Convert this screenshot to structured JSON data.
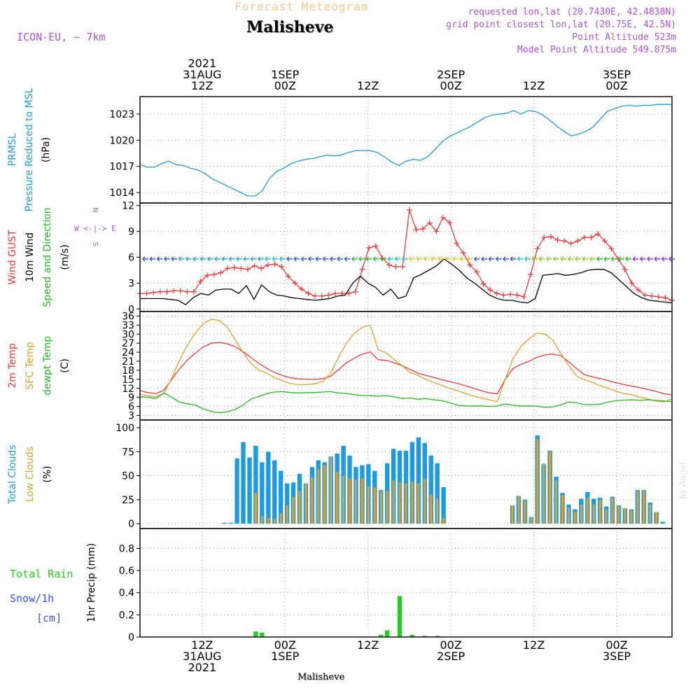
{
  "header": {
    "title": "Forecast Meteogram",
    "location": "Malisheve",
    "model": "ICON-EU, ~ 7km",
    "requested": "requested lon,lat (20.7430E, 42.4838N)",
    "grid": "grid point closest lon,lat (20.75E, 42.5N)",
    "altitude": "Point Altitude 523m",
    "model_altitude": "Model Point Altitude 549.875m"
  },
  "credit": "by Angel",
  "bottom_label": "Malisheve",
  "colors": {
    "pressure": "#1e9be0",
    "gust": "#ee3b3b",
    "wind": "#000000",
    "temp2m": "#ee3b3b",
    "sfctemp": "#e0a030",
    "dewpoint": "#22bb22",
    "total_clouds": "#1e9be0",
    "low_clouds": "#e0a030",
    "rain": "#22cc22",
    "snow": "#3355ee",
    "purple": "#a855d8"
  },
  "chart_data": {
    "type": "meteogram",
    "time": {
      "start_hours_from_31aug00z": 3,
      "step_hours": 1,
      "count": 67,
      "top_ticks": [
        {
          "h": 12,
          "lines": [
            "2021",
            "31AUG",
            "12Z"
          ]
        },
        {
          "h": 24,
          "lines": [
            "1SEP",
            "00Z"
          ]
        },
        {
          "h": 36,
          "lines": [
            "12Z"
          ]
        },
        {
          "h": 48,
          "lines": [
            "2SEP",
            "00Z"
          ]
        },
        {
          "h": 60,
          "lines": [
            "12Z"
          ]
        },
        {
          "h": 72,
          "lines": [
            "3SEP",
            "00Z"
          ]
        }
      ],
      "bottom_ticks": [
        {
          "h": 12,
          "lines": [
            "12Z",
            "31AUG",
            "2021"
          ]
        },
        {
          "h": 24,
          "lines": [
            "00Z",
            "1SEP"
          ]
        },
        {
          "h": 36,
          "lines": [
            "12Z"
          ]
        },
        {
          "h": 48,
          "lines": [
            "00Z",
            "2SEP"
          ]
        },
        {
          "h": 60,
          "lines": [
            "12Z"
          ]
        },
        {
          "h": 72,
          "lines": [
            "00Z",
            "3SEP"
          ]
        }
      ]
    },
    "panels": [
      {
        "id": "pressure",
        "ylabels": [
          {
            "text": "PRMSL",
            "color": "#1e9be0"
          },
          {
            "text": "Pressure Reduced to MSL",
            "color": "#1e9be0"
          },
          {
            "text": "(hPa)",
            "color": "#000000"
          }
        ],
        "ylim": [
          1012.8,
          1025.0
        ],
        "yticks": [
          1014,
          1017,
          1020,
          1023
        ],
        "grid": true,
        "series": [
          {
            "type": "line",
            "color": "#1e9be0",
            "values": [
              1017.2,
              1016.9,
              1016.9,
              1017.3,
              1017.6,
              1017.2,
              1017.1,
              1016.8,
              1016.6,
              1016.2,
              1015.6,
              1015.2,
              1014.8,
              1014.4,
              1014.0,
              1013.6,
              1013.6,
              1014.2,
              1015.6,
              1016.4,
              1016.8,
              1017.3,
              1017.6,
              1017.8,
              1017.9,
              1018.1,
              1018.3,
              1018.2,
              1018.3,
              1018.6,
              1018.8,
              1018.8,
              1018.8,
              1018.6,
              1018.1,
              1017.5,
              1017.1,
              1017.6,
              1017.8,
              1017.7,
              1018.1,
              1018.9,
              1019.8,
              1020.4,
              1020.8,
              1021.2,
              1021.6,
              1022.1,
              1022.6,
              1022.9,
              1023.0,
              1023.1,
              1023.4,
              1023.0,
              1023.4,
              1023.3,
              1022.9,
              1022.3,
              1021.6,
              1021.0,
              1020.5,
              1020.7,
              1021.0,
              1021.5,
              1022.4,
              1023.3,
              1023.6,
              1023.9,
              1024.0,
              1023.9,
              1024.0,
              1024.0,
              1024.1,
              1024.1,
              1024.1
            ]
          }
        ]
      },
      {
        "id": "wind",
        "ylabels": [
          {
            "text": "Wind GUST",
            "color": "#ee3b3b"
          },
          {
            "text": "10m Wind",
            "color": "#000000"
          },
          {
            "text": "Speed and Direction",
            "color": "#22bb22"
          },
          {
            "text": "(m/s)",
            "color": "#000000"
          }
        ],
        "compass": [
          "N",
          "W <-|-> E",
          "S"
        ],
        "ylim": [
          -0.3,
          12.3
        ],
        "yticks": [
          0,
          3,
          6,
          9,
          12
        ],
        "grid": true,
        "series": [
          {
            "type": "line",
            "name": "gust",
            "color": "#ee3b3b",
            "marker": "+",
            "values": [
              1.8,
              1.8,
              1.9,
              2.0,
              2.0,
              2.1,
              2.1,
              2.0,
              2.0,
              3.2,
              3.9,
              4.0,
              4.2,
              4.7,
              4.8,
              4.7,
              4.6,
              5.0,
              4.7,
              5.1,
              5.2,
              4.9,
              3.8,
              3.0,
              2.3,
              1.8,
              1.5,
              1.5,
              1.6,
              1.8,
              1.8,
              1.8,
              2.0,
              4.6,
              7.1,
              7.3,
              5.9,
              5.1,
              4.9,
              4.9,
              11.5,
              9.2,
              9.3,
              10.0,
              9.0,
              10.6,
              10.0,
              7.6,
              6.5,
              5.1,
              4.3,
              2.9,
              2.2,
              1.8,
              1.6,
              1.7,
              1.6,
              1.4,
              4.0,
              7.0,
              8.3,
              8.4,
              8.0,
              7.9,
              7.6,
              7.9,
              8.3,
              8.3,
              8.7,
              7.9,
              7.0,
              5.8,
              4.6,
              3.0,
              2.2,
              1.6,
              1.5,
              1.4,
              1.3,
              1.0
            ]
          },
          {
            "type": "line",
            "name": "wind",
            "color": "#000000",
            "values": [
              1.2,
              1.2,
              1.2,
              1.2,
              1.1,
              1.0,
              0.5,
              1.3,
              1.8,
              1.6,
              2.2,
              2.3,
              2.3,
              1.8,
              2.7,
              1.1,
              2.8,
              2.0,
              1.6,
              1.5,
              1.3,
              1.2,
              1.1,
              1.0,
              1.1,
              1.2,
              1.5,
              1.6,
              3.0,
              3.8,
              3.0,
              2.5,
              1.6,
              2.3,
              1.2,
              1.5,
              3.6,
              4.0,
              4.5,
              5.0,
              5.8,
              5.2,
              4.5,
              3.6,
              3.0,
              2.3,
              1.6,
              1.2,
              1.0,
              1.0,
              0.8,
              0.7,
              1.2,
              3.9,
              4.0,
              4.1,
              3.9,
              4.0,
              4.2,
              4.5,
              4.6,
              4.6,
              4.2,
              3.4,
              2.6,
              1.8,
              1.3,
              1.0,
              0.9,
              0.8,
              0.7
            ]
          }
        ]
      },
      {
        "id": "temperature",
        "ylabels": [
          {
            "text": "2m Temp",
            "color": "#ee3b3b"
          },
          {
            "text": "SFC Temp",
            "color": "#e0a030"
          },
          {
            "text": "dewpt Temp",
            "color": "#22bb22"
          },
          {
            "text": "(C)",
            "color": "#000000"
          }
        ],
        "ylim": [
          1.5,
          37.5
        ],
        "yticks": [
          3,
          6,
          9,
          12,
          15,
          18,
          21,
          24,
          27,
          30,
          33,
          36
        ],
        "grid": true,
        "series": [
          {
            "type": "line",
            "name": "2m",
            "color": "#ee3b3b",
            "values": [
              11.2,
              10.6,
              10.2,
              11.4,
              15.0,
              18.5,
              21.5,
              23.8,
              25.8,
              27.0,
              27.2,
              26.8,
              25.8,
              24.1,
              22.2,
              20.2,
              18.6,
              17.2,
              16.2,
              15.5,
              15.1,
              15.0,
              15.0,
              15.2,
              16.0,
              18.2,
              20.5,
              22.0,
              23.4,
              24.1,
              21.5,
              21.3,
              20.5,
              19.5,
              18.3,
              17.0,
              16.3,
              15.6,
              14.9,
              14.2,
              13.6,
              12.8,
              12.1,
              11.2,
              10.5,
              10.2,
              15.0,
              18.6,
              20.0,
              21.0,
              22.3,
              23.1,
              23.4,
              22.8,
              20.8,
              18.5,
              16.5,
              15.8,
              15.2,
              14.5,
              13.8,
              13.2,
              12.7,
              12.2,
              11.6,
              11.0,
              10.2,
              9.8
            ]
          },
          {
            "type": "line",
            "name": "sfc",
            "color": "#e0a030",
            "values": [
              10.0,
              9.5,
              9.2,
              10.3,
              15.5,
              21.5,
              26.5,
              30.5,
              33.5,
              35.0,
              34.5,
              32.3,
              28.0,
              23.8,
              20.2,
              18.0,
              17.0,
              15.5,
              14.5,
              13.6,
              13.2,
              13.3,
              13.5,
              14.2,
              17.0,
              22.3,
              27.0,
              30.3,
              32.3,
              33.0,
              24.8,
              23.8,
              21.5,
              19.6,
              17.2,
              16.3,
              15.0,
              14.0,
              13.0,
              12.0,
              11.2,
              10.3,
              9.5,
              8.8,
              8.2,
              7.6,
              15.0,
              22.0,
              26.0,
              28.5,
              30.3,
              30.0,
              28.0,
              23.5,
              19.5,
              16.0,
              14.8,
              14.0,
              12.8,
              12.0,
              11.0,
              10.3,
              9.8,
              9.0,
              8.4,
              7.8,
              7.5,
              8.5
            ]
          },
          {
            "type": "line",
            "name": "dew",
            "color": "#22bb22",
            "values": [
              9.2,
              9.0,
              8.6,
              10.5,
              9.0,
              7.4,
              6.9,
              6.4,
              5.2,
              4.3,
              3.9,
              4.2,
              5.0,
              6.5,
              8.5,
              9.3,
              10.3,
              10.8,
              10.9,
              10.6,
              10.5,
              10.6,
              10.6,
              10.8,
              10.9,
              10.5,
              10.3,
              9.9,
              9.6,
              9.6,
              9.4,
              9.6,
              9.2,
              8.6,
              8.8,
              8.4,
              8.6,
              8.2,
              7.9,
              7.2,
              6.4,
              6.2,
              6.1,
              6.2,
              6.0,
              6.1,
              6.8,
              6.4,
              6.1,
              6.2,
              6.1,
              5.7,
              5.9,
              6.5,
              7.5,
              7.2,
              6.6,
              6.6,
              6.8,
              7.5,
              7.9,
              8.1,
              8.2,
              8.0,
              8.2,
              8.0,
              7.8,
              7.6
            ]
          }
        ]
      },
      {
        "id": "clouds",
        "ylabels": [
          {
            "text": "Total Clouds",
            "color": "#1e9be0"
          },
          {
            "text": "Low Clouds",
            "color": "#e0a030"
          },
          {
            "text": "(%)",
            "color": "#000000"
          }
        ],
        "ylim": [
          -5,
          108
        ],
        "yticks": [
          0,
          25,
          50,
          75,
          100
        ],
        "grid": true,
        "series": [
          {
            "type": "bar",
            "name": "total",
            "color": "#1e9be0",
            "values": [
              0,
              0,
              0,
              0,
              0,
              0,
              0,
              0,
              0,
              0,
              0,
              0,
              0,
              1,
              1,
              68,
              85,
              69,
              81,
              64,
              75,
              66,
              55,
              42,
              43,
              52,
              42,
              59,
              66,
              64,
              70,
              73,
              81,
              71,
              59,
              61,
              62,
              55,
              35,
              63,
              78,
              76,
              76,
              85,
              90,
              84,
              71,
              63,
              38,
              0,
              0,
              0,
              0,
              0,
              0,
              0,
              0,
              0,
              0,
              19,
              29,
              25,
              7,
              92,
              62,
              76,
              49,
              32,
              20,
              15,
              26,
              33,
              26,
              27,
              18,
              28,
              19,
              16,
              15,
              35,
              35,
              22,
              12,
              2,
              0
            ]
          },
          {
            "type": "bar",
            "name": "low",
            "color": "#e0a030",
            "values": [
              0,
              0,
              0,
              0,
              0,
              0,
              0,
              0,
              0,
              0,
              0,
              0,
              0,
              0,
              0,
              0,
              0,
              0,
              32,
              8,
              6,
              5,
              11,
              19,
              28,
              34,
              42,
              48,
              57,
              61,
              70,
              54,
              50,
              47,
              46,
              47,
              39,
              38,
              34,
              34,
              45,
              43,
              42,
              44,
              42,
              47,
              30,
              26,
              6,
              0,
              0,
              0,
              0,
              0,
              0,
              0,
              0,
              0,
              0,
              19,
              29,
              24,
              7,
              88,
              63,
              75,
              45,
              30,
              17,
              12,
              20,
              27,
              20,
              25,
              15,
              27,
              18,
              16,
              14,
              34,
              34,
              20,
              12,
              0,
              0
            ]
          }
        ]
      },
      {
        "id": "precip",
        "ylabels": [
          {
            "text": "1hr Precip (mm)",
            "color": "#000000"
          }
        ],
        "side_labels": [
          {
            "text": "Total  Rain",
            "color": "#22cc22"
          },
          {
            "text": "Snow/1h",
            "color": "#3355ee"
          },
          {
            "text": "[cm]",
            "color": "#3355ee"
          }
        ],
        "ylim": [
          0,
          0.98
        ],
        "yticks": [
          0,
          0.2,
          0.4,
          0.6,
          0.8
        ],
        "grid": true,
        "series": [
          {
            "type": "bar",
            "name": "rain",
            "color": "#22cc22",
            "values": [
              0,
              0,
              0,
              0,
              0,
              0,
              0,
              0,
              0,
              0,
              0,
              0,
              0,
              0,
              0,
              0,
              0,
              0,
              0.05,
              0.04,
              0,
              0,
              0,
              0,
              0,
              0,
              0,
              0,
              0,
              0,
              0,
              0,
              0,
              0,
              0,
              0,
              0,
              0,
              0.02,
              0.06,
              0,
              0.37,
              0,
              0.02,
              0,
              0.01,
              0,
              0.01,
              0,
              0,
              0,
              0,
              0,
              0,
              0,
              0,
              0,
              0,
              0,
              0,
              0,
              0,
              0,
              0,
              0,
              0,
              0,
              0,
              0,
              0,
              0,
              0,
              0,
              0,
              0,
              0,
              0,
              0,
              0,
              0,
              0,
              0,
              0,
              0,
              0
            ]
          }
        ]
      }
    ]
  }
}
